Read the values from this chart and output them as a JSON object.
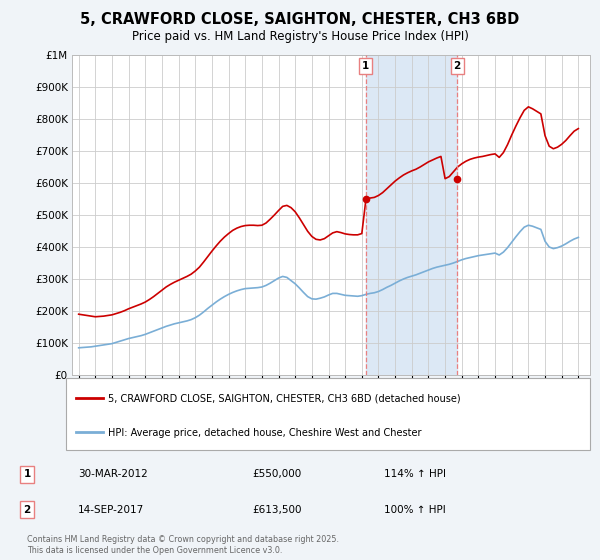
{
  "title": "5, CRAWFORD CLOSE, SAIGHTON, CHESTER, CH3 6BD",
  "subtitle": "Price paid vs. HM Land Registry's House Price Index (HPI)",
  "ytick_values": [
    0,
    100000,
    200000,
    300000,
    400000,
    500000,
    600000,
    700000,
    800000,
    900000,
    1000000
  ],
  "ylim": [
    0,
    1000000
  ],
  "xlim_start": 1994.6,
  "xlim_end": 2025.7,
  "x_ticks": [
    1995,
    1996,
    1997,
    1998,
    1999,
    2000,
    2001,
    2002,
    2003,
    2004,
    2005,
    2006,
    2007,
    2008,
    2009,
    2010,
    2011,
    2012,
    2013,
    2014,
    2015,
    2016,
    2017,
    2018,
    2019,
    2020,
    2021,
    2022,
    2023,
    2024,
    2025
  ],
  "marker1_x": 2012.23,
  "marker2_x": 2017.72,
  "marker1_date": "30-MAR-2012",
  "marker1_price": "£550,000",
  "marker1_hpi": "114% ↑ HPI",
  "marker2_date": "14-SEP-2017",
  "marker2_price": "£613,500",
  "marker2_hpi": "100% ↑ HPI",
  "line1_color": "#cc0000",
  "line2_color": "#7aaed6",
  "vline_color": "#e88080",
  "shade_color": "#dce8f5",
  "legend1_label": "5, CRAWFORD CLOSE, SAIGHTON, CHESTER, CH3 6BD (detached house)",
  "legend2_label": "HPI: Average price, detached house, Cheshire West and Chester",
  "footer": "Contains HM Land Registry data © Crown copyright and database right 2025.\nThis data is licensed under the Open Government Licence v3.0.",
  "bg_color": "#f0f4f8",
  "plot_bg_color": "#ffffff",
  "grid_color": "#cccccc",
  "hpi_data_x": [
    1995.0,
    1995.25,
    1995.5,
    1995.75,
    1996.0,
    1996.25,
    1996.5,
    1996.75,
    1997.0,
    1997.25,
    1997.5,
    1997.75,
    1998.0,
    1998.25,
    1998.5,
    1998.75,
    1999.0,
    1999.25,
    1999.5,
    1999.75,
    2000.0,
    2000.25,
    2000.5,
    2000.75,
    2001.0,
    2001.25,
    2001.5,
    2001.75,
    2002.0,
    2002.25,
    2002.5,
    2002.75,
    2003.0,
    2003.25,
    2003.5,
    2003.75,
    2004.0,
    2004.25,
    2004.5,
    2004.75,
    2005.0,
    2005.25,
    2005.5,
    2005.75,
    2006.0,
    2006.25,
    2006.5,
    2006.75,
    2007.0,
    2007.25,
    2007.5,
    2007.75,
    2008.0,
    2008.25,
    2008.5,
    2008.75,
    2009.0,
    2009.25,
    2009.5,
    2009.75,
    2010.0,
    2010.25,
    2010.5,
    2010.75,
    2011.0,
    2011.25,
    2011.5,
    2011.75,
    2012.0,
    2012.25,
    2012.5,
    2012.75,
    2013.0,
    2013.25,
    2013.5,
    2013.75,
    2014.0,
    2014.25,
    2014.5,
    2014.75,
    2015.0,
    2015.25,
    2015.5,
    2015.75,
    2016.0,
    2016.25,
    2016.5,
    2016.75,
    2017.0,
    2017.25,
    2017.5,
    2017.75,
    2018.0,
    2018.25,
    2018.5,
    2018.75,
    2019.0,
    2019.25,
    2019.5,
    2019.75,
    2020.0,
    2020.25,
    2020.5,
    2020.75,
    2021.0,
    2021.25,
    2021.5,
    2021.75,
    2022.0,
    2022.25,
    2022.5,
    2022.75,
    2023.0,
    2023.25,
    2023.5,
    2023.75,
    2024.0,
    2024.25,
    2024.5,
    2024.75,
    2025.0
  ],
  "hpi_data_y": [
    85000,
    86000,
    87000,
    88000,
    90000,
    92000,
    94000,
    96000,
    98000,
    102000,
    106000,
    110000,
    114000,
    117000,
    120000,
    123000,
    127000,
    132000,
    137000,
    142000,
    147000,
    152000,
    156000,
    160000,
    163000,
    166000,
    169000,
    173000,
    179000,
    187000,
    197000,
    208000,
    218000,
    228000,
    237000,
    245000,
    252000,
    258000,
    263000,
    267000,
    270000,
    271000,
    272000,
    273000,
    275000,
    280000,
    287000,
    295000,
    303000,
    308000,
    305000,
    295000,
    285000,
    272000,
    258000,
    245000,
    238000,
    237000,
    240000,
    244000,
    250000,
    255000,
    255000,
    252000,
    249000,
    248000,
    247000,
    246000,
    248000,
    252000,
    255000,
    257000,
    261000,
    267000,
    274000,
    280000,
    287000,
    294000,
    300000,
    305000,
    309000,
    313000,
    318000,
    323000,
    328000,
    333000,
    337000,
    340000,
    343000,
    346000,
    350000,
    355000,
    360000,
    364000,
    367000,
    370000,
    373000,
    375000,
    377000,
    379000,
    381000,
    375000,
    384000,
    398000,
    415000,
    432000,
    448000,
    462000,
    468000,
    465000,
    460000,
    455000,
    418000,
    400000,
    395000,
    398000,
    403000,
    410000,
    418000,
    425000,
    430000
  ],
  "property_data_x": [
    1995.0,
    1995.25,
    1995.5,
    1995.75,
    1996.0,
    1996.25,
    1996.5,
    1996.75,
    1997.0,
    1997.25,
    1997.5,
    1997.75,
    1998.0,
    1998.25,
    1998.5,
    1998.75,
    1999.0,
    1999.25,
    1999.5,
    1999.75,
    2000.0,
    2000.25,
    2000.5,
    2000.75,
    2001.0,
    2001.25,
    2001.5,
    2001.75,
    2002.0,
    2002.25,
    2002.5,
    2002.75,
    2003.0,
    2003.25,
    2003.5,
    2003.75,
    2004.0,
    2004.25,
    2004.5,
    2004.75,
    2005.0,
    2005.25,
    2005.5,
    2005.75,
    2006.0,
    2006.25,
    2006.5,
    2006.75,
    2007.0,
    2007.25,
    2007.5,
    2007.75,
    2008.0,
    2008.25,
    2008.5,
    2008.75,
    2009.0,
    2009.25,
    2009.5,
    2009.75,
    2010.0,
    2010.25,
    2010.5,
    2010.75,
    2011.0,
    2011.25,
    2011.5,
    2011.75,
    2012.0,
    2012.25,
    2012.5,
    2012.75,
    2013.0,
    2013.25,
    2013.5,
    2013.75,
    2014.0,
    2014.25,
    2014.5,
    2014.75,
    2015.0,
    2015.25,
    2015.5,
    2015.75,
    2016.0,
    2016.25,
    2016.5,
    2016.75,
    2017.0,
    2017.25,
    2017.5,
    2017.75,
    2018.0,
    2018.25,
    2018.5,
    2018.75,
    2019.0,
    2019.25,
    2019.5,
    2019.75,
    2020.0,
    2020.25,
    2020.5,
    2020.75,
    2021.0,
    2021.25,
    2021.5,
    2021.75,
    2022.0,
    2022.25,
    2022.5,
    2022.75,
    2023.0,
    2023.25,
    2023.5,
    2023.75,
    2024.0,
    2024.25,
    2024.5,
    2024.75,
    2025.0
  ],
  "property_data_y": [
    190000,
    188000,
    186000,
    184000,
    182000,
    183000,
    184000,
    186000,
    188000,
    192000,
    196000,
    201000,
    207000,
    212000,
    217000,
    222000,
    228000,
    236000,
    245000,
    255000,
    265000,
    275000,
    283000,
    290000,
    296000,
    302000,
    308000,
    315000,
    325000,
    337000,
    353000,
    370000,
    387000,
    403000,
    418000,
    431000,
    442000,
    452000,
    459000,
    464000,
    467000,
    468000,
    468000,
    467000,
    468000,
    475000,
    487000,
    500000,
    514000,
    527000,
    530000,
    523000,
    510000,
    491000,
    470000,
    449000,
    433000,
    424000,
    422000,
    426000,
    435000,
    444000,
    448000,
    445000,
    441000,
    439000,
    438000,
    438000,
    442000,
    550000,
    553000,
    555000,
    561000,
    570000,
    582000,
    594000,
    606000,
    616000,
    625000,
    632000,
    638000,
    643000,
    650000,
    658000,
    666000,
    672000,
    678000,
    683000,
    613500,
    620000,
    635000,
    650000,
    660000,
    668000,
    674000,
    678000,
    681000,
    683000,
    686000,
    689000,
    691000,
    680000,
    695000,
    720000,
    750000,
    778000,
    804000,
    827000,
    838000,
    832000,
    824000,
    816000,
    748000,
    715000,
    707000,
    712000,
    721000,
    733000,
    748000,
    762000,
    770000
  ]
}
